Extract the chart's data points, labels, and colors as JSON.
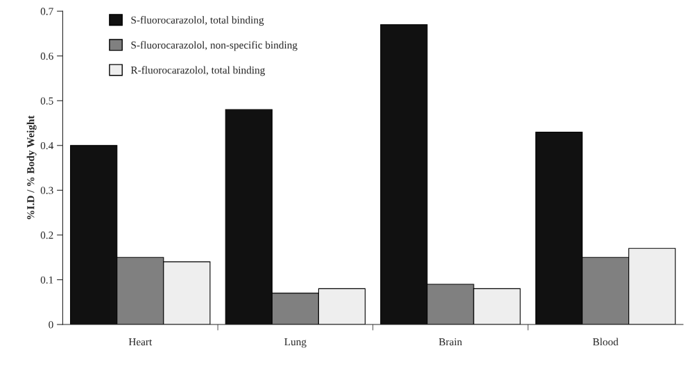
{
  "chart_data": {
    "type": "bar",
    "ylabel": "%I.D / % Body Weight",
    "categories": [
      "Heart",
      "Lung",
      "Brain",
      "Blood"
    ],
    "series": [
      {
        "name": "S-fluorocarazolol, total binding",
        "color": "#111111",
        "values": [
          0.4,
          0.48,
          0.67,
          0.43
        ]
      },
      {
        "name": "S-fluorocarazolol, non-specific binding",
        "color": "#808080",
        "values": [
          0.15,
          0.07,
          0.09,
          0.15
        ]
      },
      {
        "name": "R-fluorocarazolol, total binding",
        "color": "#eeeeee",
        "values": [
          0.14,
          0.08,
          0.08,
          0.17
        ]
      }
    ],
    "ylim": [
      0,
      0.7
    ],
    "yticks": [
      {
        "value": 0,
        "label": "0"
      },
      0.1,
      0.2,
      0.3,
      0.4,
      0.5,
      0.6,
      0.7
    ],
    "grid": false,
    "legend": "top left"
  }
}
